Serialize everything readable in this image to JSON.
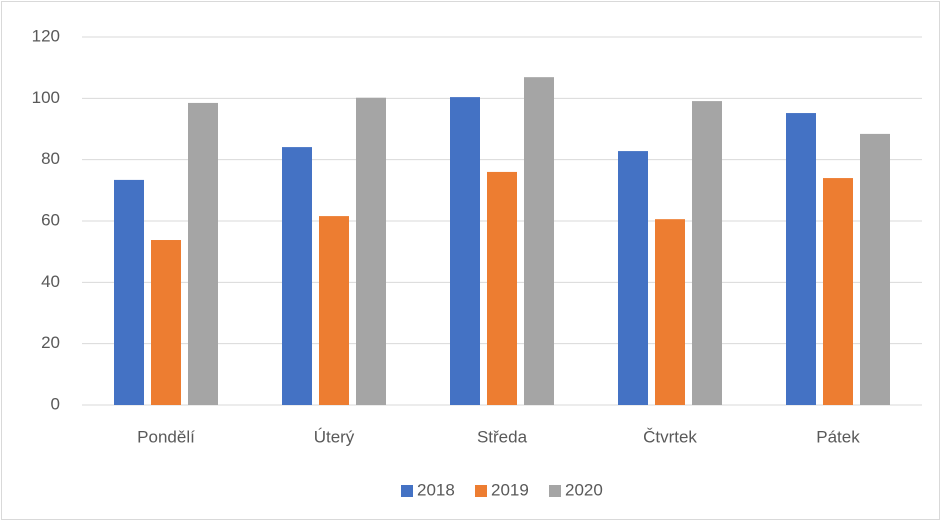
{
  "chart_data": {
    "type": "bar",
    "categories": [
      "Pondělí",
      "Úterý",
      "Středa",
      "Čtvrtek",
      "Pátek"
    ],
    "series": [
      {
        "name": "2018",
        "color": "#4472c4",
        "values": [
          73.4,
          84.1,
          100.4,
          82.8,
          95.2
        ]
      },
      {
        "name": "2019",
        "color": "#ed7d31",
        "values": [
          53.8,
          61.6,
          76,
          60.6,
          74
        ]
      },
      {
        "name": "2020",
        "color": "#a5a5a5",
        "values": [
          98.5,
          100.2,
          106.9,
          99.1,
          88.4
        ]
      }
    ],
    "ylim": [
      0,
      120
    ],
    "yticks": [
      0,
      20,
      40,
      60,
      80,
      100,
      120
    ],
    "grid": true,
    "legend": "bottom"
  }
}
